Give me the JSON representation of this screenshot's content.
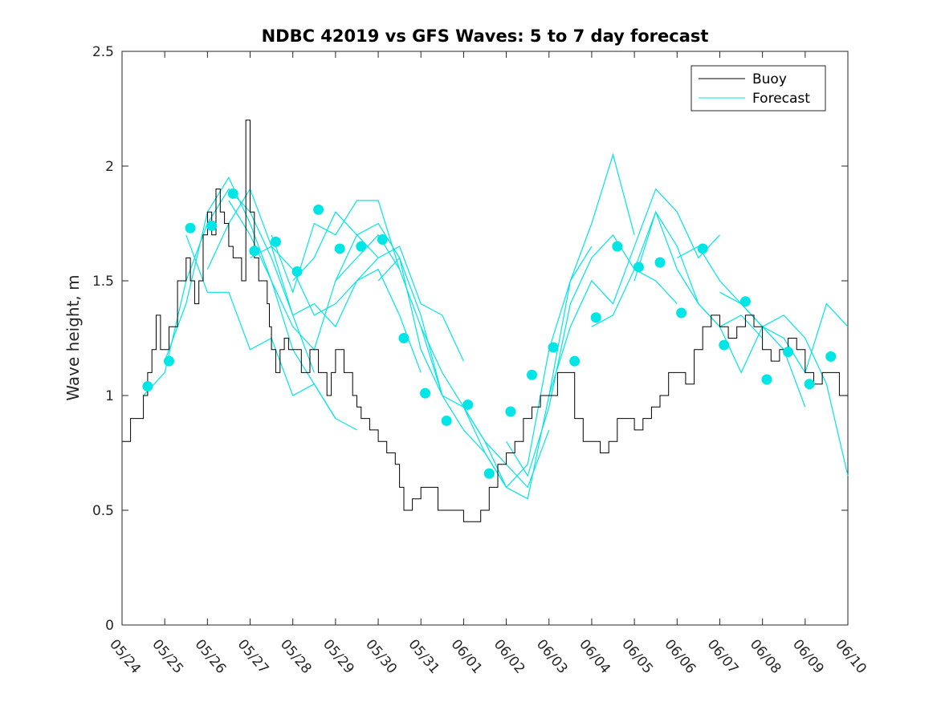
{
  "chart_data": {
    "type": "line",
    "title": "NDBC 42019 vs GFS Waves: 5 to 7 day forecast",
    "xlabel": "",
    "ylabel": "Wave height, m",
    "xlim": [
      "05/24",
      "06/10"
    ],
    "ylim": [
      0,
      2.5
    ],
    "x_ticks": [
      "05/24",
      "05/25",
      "05/26",
      "05/27",
      "05/28",
      "05/29",
      "05/30",
      "05/31",
      "06/01",
      "06/02",
      "06/03",
      "06/04",
      "06/05",
      "06/06",
      "06/07",
      "06/08",
      "06/09",
      "06/10"
    ],
    "y_ticks": [
      "0",
      "0.5",
      "1",
      "1.5",
      "2",
      "2.5"
    ],
    "grid": false,
    "legend_position": "top-right",
    "colors": {
      "buoy": "#000000",
      "forecast": "#00e5e5"
    },
    "series": [
      {
        "name": "Buoy",
        "style": "line",
        "x_days": [
          0.0,
          0.2,
          0.4,
          0.5,
          0.6,
          0.7,
          0.8,
          0.9,
          1.0,
          1.1,
          1.3,
          1.5,
          1.6,
          1.7,
          1.8,
          1.9,
          2.0,
          2.1,
          2.2,
          2.3,
          2.4,
          2.5,
          2.6,
          2.7,
          2.8,
          2.9,
          3.0,
          3.1,
          3.2,
          3.3,
          3.4,
          3.45,
          3.5,
          3.6,
          3.7,
          3.8,
          3.9,
          4.0,
          4.2,
          4.4,
          4.6,
          4.8,
          4.9,
          5.0,
          5.2,
          5.4,
          5.5,
          5.6,
          5.8,
          6.0,
          6.2,
          6.4,
          6.5,
          6.6,
          6.8,
          7.0,
          7.2,
          7.4,
          7.6,
          7.8,
          8.0,
          8.2,
          8.4,
          8.6,
          8.8,
          9.0,
          9.2,
          9.4,
          9.6,
          9.8,
          10.0,
          10.2,
          10.4,
          10.6,
          10.8,
          11.0,
          11.2,
          11.4,
          11.6,
          11.8,
          12.0,
          12.2,
          12.4,
          12.6,
          12.8,
          13.0,
          13.2,
          13.4,
          13.6,
          13.8,
          14.0,
          14.2,
          14.4,
          14.6,
          14.8,
          15.0,
          15.2,
          15.4,
          15.6,
          15.8,
          16.0,
          16.2,
          16.4,
          16.6,
          16.8,
          17.0
        ],
        "values": [
          0.8,
          0.9,
          0.9,
          1.0,
          1.1,
          1.2,
          1.35,
          1.2,
          1.2,
          1.3,
          1.5,
          1.6,
          1.5,
          1.4,
          1.5,
          1.7,
          1.8,
          1.7,
          1.9,
          1.8,
          1.75,
          1.65,
          1.6,
          1.6,
          1.5,
          2.2,
          1.8,
          1.6,
          1.5,
          1.5,
          1.4,
          1.3,
          1.2,
          1.1,
          1.2,
          1.25,
          1.2,
          1.2,
          1.1,
          1.2,
          1.1,
          1.0,
          1.1,
          1.2,
          1.1,
          1.0,
          0.95,
          0.9,
          0.85,
          0.8,
          0.75,
          0.7,
          0.6,
          0.5,
          0.55,
          0.6,
          0.6,
          0.5,
          0.5,
          0.5,
          0.45,
          0.45,
          0.5,
          0.6,
          0.7,
          0.75,
          0.8,
          0.9,
          0.95,
          1.0,
          1.0,
          1.1,
          1.1,
          0.9,
          0.8,
          0.8,
          0.75,
          0.8,
          0.9,
          0.9,
          0.85,
          0.9,
          0.95,
          1.0,
          1.1,
          1.1,
          1.05,
          1.2,
          1.3,
          1.35,
          1.3,
          1.25,
          1.3,
          1.35,
          1.3,
          1.2,
          1.15,
          1.2,
          1.25,
          1.2,
          1.1,
          1.05,
          1.1,
          1.1,
          1.0,
          1.0
        ]
      },
      {
        "name": "Forecast",
        "style": "line",
        "runs": [
          {
            "x": [
              0.5,
              1.0,
              1.5,
              2.0,
              2.5,
              3.0,
              3.5,
              4.0,
              4.5
            ],
            "values": [
              1.0,
              1.1,
              1.5,
              1.75,
              1.9,
              1.8,
              1.6,
              1.35,
              1.1
            ]
          },
          {
            "x": [
              1.0,
              1.5,
              2.0,
              2.5,
              3.0,
              3.5,
              4.0,
              4.5,
              5.0
            ],
            "values": [
              1.15,
              1.4,
              1.8,
              1.95,
              1.75,
              1.5,
              1.2,
              1.05,
              0.9
            ]
          },
          {
            "x": [
              1.5,
              2.0,
              2.5,
              3.0,
              3.5,
              4.0,
              4.5,
              5.0,
              5.5
            ],
            "values": [
              1.7,
              1.45,
              1.45,
              1.2,
              1.25,
              1.0,
              1.05,
              0.9,
              0.85
            ]
          },
          {
            "x": [
              2.0,
              2.5,
              3.0,
              3.5,
              4.0,
              4.5,
              5.0,
              5.5,
              6.0
            ],
            "values": [
              1.55,
              1.75,
              1.9,
              1.65,
              1.35,
              1.4,
              1.3,
              1.5,
              1.6
            ]
          },
          {
            "x": [
              2.5,
              3.0,
              3.5,
              4.0,
              4.5,
              5.0,
              5.5,
              6.0,
              6.5
            ],
            "values": [
              1.85,
              1.7,
              1.5,
              1.3,
              1.2,
              1.5,
              1.6,
              1.7,
              1.55
            ]
          },
          {
            "x": [
              3.0,
              3.5,
              4.0,
              4.5,
              5.0,
              5.5,
              6.0,
              6.5,
              7.0
            ],
            "values": [
              1.6,
              1.65,
              1.55,
              1.35,
              1.4,
              1.5,
              1.55,
              1.35,
              1.1
            ]
          },
          {
            "x": [
              3.5,
              4.0,
              4.5,
              5.0,
              5.5,
              6.0,
              6.5,
              7.0,
              7.5
            ],
            "values": [
              1.7,
              1.45,
              1.75,
              1.7,
              1.85,
              1.85,
              1.55,
              1.3,
              1.0
            ]
          },
          {
            "x": [
              4.0,
              4.5,
              5.0,
              5.5,
              6.0,
              6.5,
              7.0,
              7.5,
              8.0
            ],
            "values": [
              1.5,
              1.6,
              1.8,
              1.7,
              1.6,
              1.65,
              1.4,
              1.35,
              1.15
            ]
          },
          {
            "x": [
              5.0,
              5.5,
              6.0,
              6.5,
              7.0,
              7.5,
              8.0,
              8.5,
              9.0
            ],
            "values": [
              1.5,
              1.7,
              1.75,
              1.6,
              1.2,
              1.0,
              0.85,
              0.75,
              0.6
            ]
          },
          {
            "x": [
              6.0,
              6.5,
              7.0,
              7.5,
              8.0,
              8.5,
              9.0,
              9.5,
              10.0
            ],
            "values": [
              1.5,
              1.6,
              1.35,
              1.0,
              0.95,
              0.8,
              0.7,
              0.6,
              0.85
            ]
          },
          {
            "x": [
              7.0,
              7.5,
              8.0,
              8.5,
              9.0,
              9.5,
              10.0,
              10.5,
              11.0
            ],
            "values": [
              1.3,
              1.1,
              0.95,
              0.8,
              0.6,
              0.55,
              1.0,
              1.5,
              1.65
            ]
          },
          {
            "x": [
              8.0,
              8.5,
              9.0,
              9.5,
              10.0,
              10.5,
              11.0,
              11.5,
              12.0
            ],
            "values": [
              0.95,
              0.75,
              0.6,
              0.7,
              1.2,
              1.5,
              1.75,
              2.05,
              1.7
            ]
          },
          {
            "x": [
              9.0,
              9.5,
              10.0,
              10.5,
              11.0,
              11.5,
              12.0,
              12.5,
              13.0
            ],
            "values": [
              0.8,
              0.65,
              0.95,
              1.4,
              1.6,
              1.7,
              1.55,
              1.5,
              1.4
            ]
          },
          {
            "x": [
              10.0,
              10.5,
              11.0,
              11.5,
              12.0,
              12.5,
              13.0,
              13.5,
              14.0
            ],
            "values": [
              1.0,
              1.3,
              1.5,
              1.4,
              1.65,
              1.9,
              1.8,
              1.6,
              1.7
            ]
          },
          {
            "x": [
              11.0,
              11.5,
              12.0,
              12.5,
              13.0,
              13.5,
              14.0,
              14.5,
              15.0
            ],
            "values": [
              1.3,
              1.35,
              1.55,
              1.8,
              1.65,
              1.4,
              1.3,
              1.35,
              1.25
            ]
          },
          {
            "x": [
              12.0,
              12.5,
              13.0,
              13.5,
              14.0,
              14.5,
              15.0,
              15.5,
              16.0
            ],
            "values": [
              1.5,
              1.8,
              1.55,
              1.4,
              1.3,
              1.1,
              1.3,
              1.2,
              0.95
            ]
          },
          {
            "x": [
              13.0,
              13.5,
              14.0,
              14.5,
              15.0,
              15.5,
              16.0,
              16.5,
              17.0
            ],
            "values": [
              1.6,
              1.65,
              1.5,
              1.4,
              1.3,
              1.35,
              1.25,
              1.05,
              0.65
            ]
          },
          {
            "x": [
              14.0,
              14.5,
              15.0,
              15.5,
              16.0,
              16.5,
              17.0
            ],
            "values": [
              1.45,
              1.4,
              1.3,
              1.25,
              1.1,
              1.4,
              1.3
            ]
          }
        ]
      },
      {
        "name": "",
        "style": "markers",
        "x_days": [
          0.6,
          1.1,
          1.6,
          2.1,
          2.6,
          3.1,
          3.6,
          4.1,
          4.6,
          5.1,
          5.6,
          6.1,
          6.6,
          7.1,
          7.6,
          8.1,
          8.6,
          9.1,
          9.6,
          10.1,
          10.6,
          11.1,
          11.6,
          12.1,
          12.6,
          13.1,
          13.6,
          14.1,
          14.6,
          15.1,
          15.6,
          16.1,
          16.6
        ],
        "values": [
          1.04,
          1.15,
          1.73,
          1.74,
          1.88,
          1.63,
          1.67,
          1.54,
          1.81,
          1.64,
          1.65,
          1.68,
          1.25,
          1.01,
          0.89,
          0.96,
          0.66,
          0.93,
          1.09,
          1.21,
          1.15,
          1.34,
          1.65,
          1.56,
          1.58,
          1.36,
          1.64,
          1.22,
          1.41,
          1.07,
          1.19,
          1.05,
          1.17
        ]
      }
    ]
  }
}
